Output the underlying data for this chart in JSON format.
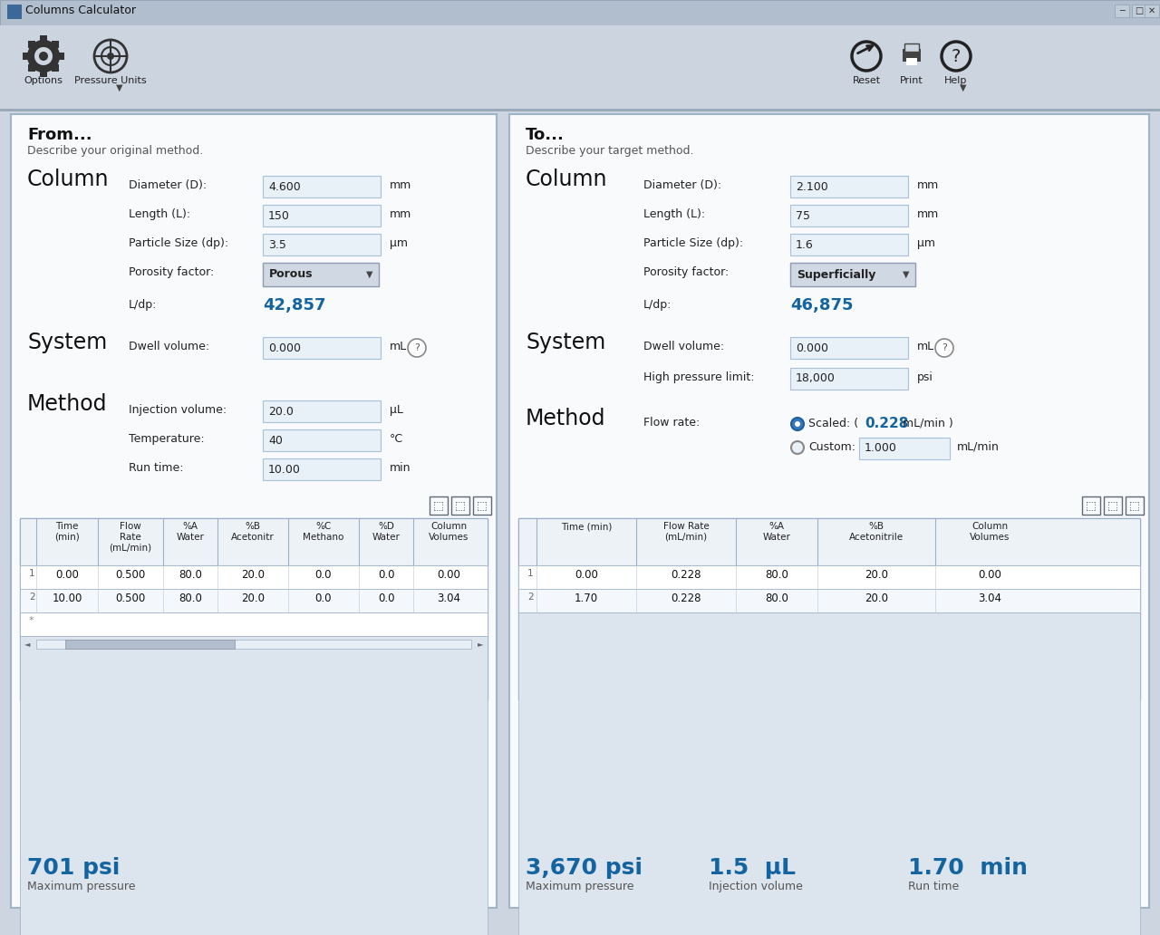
{
  "title": "Columns Calculator",
  "bg_color": "#cdd6e0",
  "panel_bg": "#ffffff",
  "toolbar_bg": "#d0dae4",
  "titlebar_bg": "#b8c8d8",
  "blue_text": "#1464a0",
  "dark_text": "#222222",
  "light_text": "#555555",
  "field_bg": "#e8f0f8",
  "from_title": "From...",
  "from_subtitle": "Describe your original method.",
  "to_title": "To...",
  "to_subtitle": "Describe your target method.",
  "from_col_diameter": "4.600",
  "from_col_length": "150",
  "from_col_particle": "3.5",
  "from_col_porosity": "Porous",
  "from_ldp": "42,857",
  "from_dwell": "0.000",
  "from_inj_vol": "20.0",
  "from_temp": "40",
  "from_runtime": "10.00",
  "from_pressure": "701 psi",
  "to_col_diameter": "2.100",
  "to_col_length": "75",
  "to_col_particle": "1.6",
  "to_col_porosity": "Superficially",
  "to_ldp": "46,875",
  "to_dwell": "0.000",
  "to_hplimit": "18,000",
  "to_flow_scaled": "0.228",
  "to_flow_custom": "1.000",
  "to_pressure": "3,670 psi",
  "to_inj_vol": "1.5  μL",
  "to_runtime": "1.70  min",
  "from_table_headers": [
    "Time\n(min)",
    "Flow\nRate\n(mL/min)",
    "%A\nWater",
    "%B\nAcetonitr",
    "%C\nMethano",
    "%D\nWater",
    "Column\nVolumes"
  ],
  "from_table_rows": [
    [
      "0.00",
      "0.500",
      "80.0",
      "20.0",
      "0.0",
      "0.0",
      "0.00"
    ],
    [
      "10.00",
      "0.500",
      "80.0",
      "20.0",
      "0.0",
      "0.0",
      "3.04"
    ]
  ],
  "to_table_headers": [
    "Time (min)",
    "Flow Rate\n(mL/min)",
    "%A\nWater",
    "%B\nAcetonitrile",
    "Column\nVolumes"
  ],
  "to_table_rows": [
    [
      "0.00",
      "0.228",
      "80.0",
      "20.0",
      "0.00"
    ],
    [
      "1.70",
      "0.228",
      "80.0",
      "20.0",
      "3.04"
    ]
  ]
}
